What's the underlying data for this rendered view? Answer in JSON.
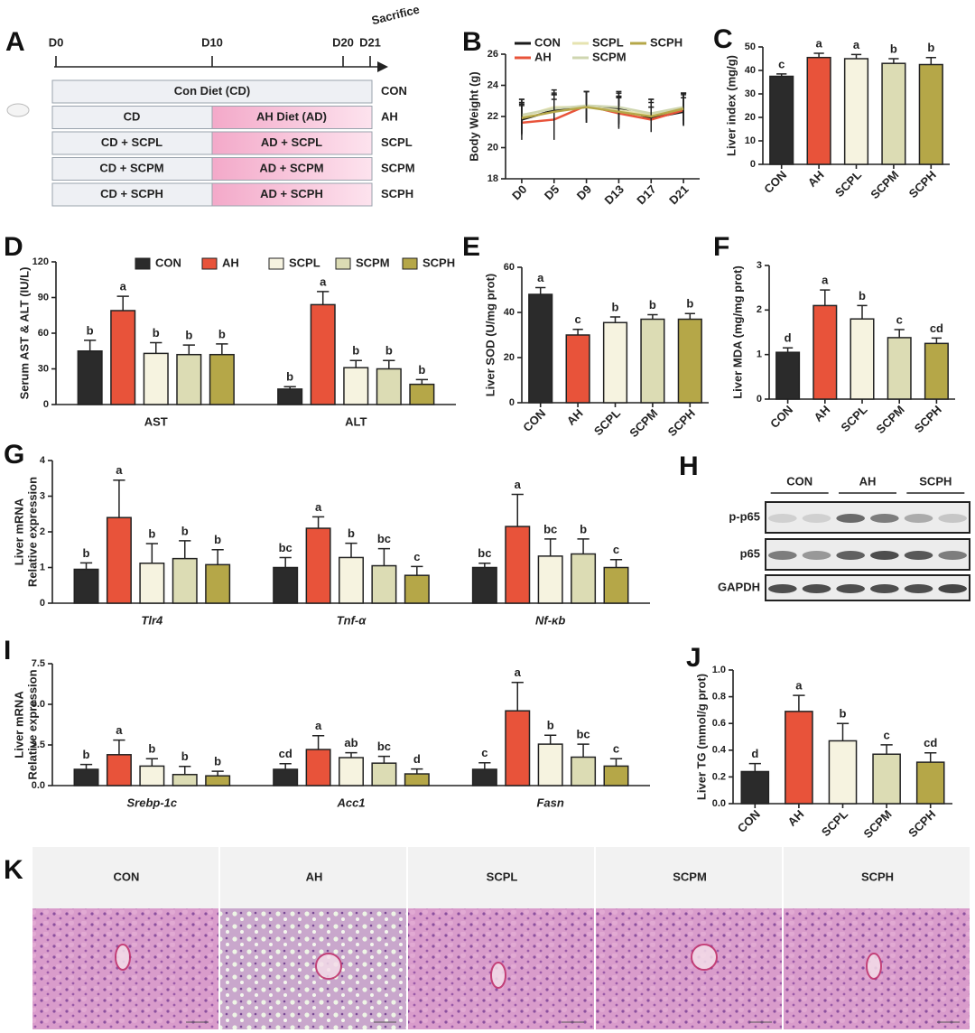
{
  "schematic": {
    "panel": "A",
    "timeline": [
      "D0",
      "D10",
      "D20",
      "D21"
    ],
    "event": "Sacrifice",
    "rows": [
      {
        "left": "Con Diet (CD)",
        "group": "CON"
      },
      {
        "left": "CD",
        "right": "AH Diet (AD)",
        "group": "AH"
      },
      {
        "left": "CD + SCPL",
        "right": "AD + SCPL",
        "group": "SCPL"
      },
      {
        "left": "CD + SCPM",
        "right": "AD + SCPM",
        "group": "SCPM"
      },
      {
        "left": "CD + SCPH",
        "right": "AD + SCPH",
        "group": "SCPH"
      }
    ]
  },
  "chart_data": [
    {
      "type": "line",
      "panel": "B",
      "ylabel": "Body Weight (g)",
      "categories": [
        "D0",
        "D5",
        "D9",
        "D13",
        "D17",
        "D21"
      ],
      "ylim": [
        18,
        26
      ],
      "yticks": [
        18,
        20,
        22,
        24,
        26
      ],
      "series": [
        {
          "name": "CON",
          "color": "#1a1a1a",
          "values": [
            21.8,
            22.4,
            22.6,
            22.5,
            21.9,
            22.3
          ],
          "errors": [
            1.0,
            1.0,
            1.0,
            1.0,
            0.7,
            0.9
          ]
        },
        {
          "name": "AH",
          "color": "#e8533a",
          "values": [
            21.6,
            21.8,
            22.7,
            22.2,
            21.8,
            22.4
          ],
          "errors": [
            1.1,
            1.3,
            0.9,
            1.0,
            0.8,
            1.0
          ]
        },
        {
          "name": "SCPL",
          "color": "#e6e3b0",
          "values": [
            22.0,
            22.6,
            22.6,
            22.4,
            22.1,
            22.5
          ],
          "errors": [
            1.1,
            1.1,
            1.0,
            0.9,
            1.0,
            1.0
          ]
        },
        {
          "name": "SCPM",
          "color": "#cfd6b0",
          "values": [
            22.1,
            22.5,
            22.7,
            22.6,
            22.2,
            22.6
          ],
          "errors": [
            1.0,
            1.0,
            0.9,
            1.0,
            0.9,
            0.9
          ]
        },
        {
          "name": "SCPH",
          "color": "#b5a748",
          "values": [
            21.9,
            22.3,
            22.6,
            22.3,
            22.0,
            22.5
          ],
          "errors": [
            1.0,
            1.1,
            1.0,
            1.0,
            0.9,
            1.0
          ]
        }
      ]
    },
    {
      "type": "bar",
      "panel": "C",
      "ylabel": "Liver index (mg/g)",
      "categories": [
        "CON",
        "AH",
        "SCPL",
        "SCPM",
        "SCPH"
      ],
      "colors": [
        "#2b2b2b",
        "#e8533a",
        "#f6f3e0",
        "#dcdcb4",
        "#b5a748"
      ],
      "values": [
        37.5,
        45.5,
        45,
        43,
        42.5
      ],
      "errors": [
        1,
        1.8,
        1.8,
        2,
        3
      ],
      "significance": [
        "c",
        "a",
        "a",
        "b",
        "b"
      ],
      "ylim": [
        0,
        50
      ],
      "yticks": [
        0,
        10,
        20,
        30,
        40,
        50
      ]
    },
    {
      "type": "grouped_bar",
      "panel": "D",
      "ylabel": "Serum AST & ALT (IU/L)",
      "legend": "top",
      "categories": [
        "AST",
        "ALT"
      ],
      "ylim": [
        0,
        120
      ],
      "yticks": [
        0,
        30,
        60,
        90,
        120
      ],
      "series": [
        {
          "name": "CON",
          "color": "#2b2b2b",
          "values": [
            45,
            13
          ],
          "errors": [
            9,
            2
          ],
          "significance": [
            "b",
            "b"
          ]
        },
        {
          "name": "AH",
          "color": "#e8533a",
          "values": [
            79,
            84
          ],
          "errors": [
            12,
            11
          ],
          "significance": [
            "a",
            "a"
          ]
        },
        {
          "name": "SCPL",
          "color": "#f6f3e0",
          "values": [
            43,
            31
          ],
          "errors": [
            9,
            6
          ],
          "significance": [
            "b",
            "b"
          ]
        },
        {
          "name": "SCPM",
          "color": "#dcdcb4",
          "values": [
            42,
            30
          ],
          "errors": [
            8,
            7
          ],
          "significance": [
            "b",
            "b"
          ]
        },
        {
          "name": "SCPH",
          "color": "#b5a748",
          "values": [
            42,
            17
          ],
          "errors": [
            9,
            4
          ],
          "significance": [
            "b",
            "b"
          ]
        }
      ]
    },
    {
      "type": "bar",
      "panel": "E",
      "ylabel": "Liver SOD (U/mg prot)",
      "categories": [
        "CON",
        "AH",
        "SCPL",
        "SCPM",
        "SCPH"
      ],
      "colors": [
        "#2b2b2b",
        "#e8533a",
        "#f6f3e0",
        "#dcdcb4",
        "#b5a748"
      ],
      "values": [
        48,
        30,
        35.5,
        37,
        37
      ],
      "errors": [
        3,
        2.5,
        2.5,
        2,
        2.5
      ],
      "significance": [
        "a",
        "c",
        "b",
        "b",
        "b"
      ],
      "ylim": [
        0,
        60
      ],
      "yticks": [
        0,
        20,
        40,
        60
      ]
    },
    {
      "type": "bar",
      "panel": "F",
      "ylabel": "Liver MDA (mg/mg prot)",
      "categories": [
        "CON",
        "AH",
        "SCPL",
        "SCPM",
        "SCPH"
      ],
      "colors": [
        "#2b2b2b",
        "#e8533a",
        "#f6f3e0",
        "#dcdcb4",
        "#b5a748"
      ],
      "values": [
        1.05,
        2.1,
        1.8,
        1.38,
        1.25
      ],
      "errors": [
        0.1,
        0.35,
        0.3,
        0.18,
        0.12
      ],
      "significance": [
        "d",
        "a",
        "b",
        "c",
        "cd"
      ],
      "ylim": [
        0,
        3
      ],
      "yticks": [
        0,
        1,
        2,
        3
      ]
    },
    {
      "type": "grouped_bar",
      "panel": "G",
      "ylabel": [
        "Liver mRNA",
        "Relative expression"
      ],
      "category_style": "italic",
      "categories": [
        "Tlr4",
        "Tnf-α",
        "Nf-κb"
      ],
      "ylim": [
        0,
        4
      ],
      "yticks": [
        0,
        1,
        2,
        3,
        4
      ],
      "series": [
        {
          "color": "#2b2b2b",
          "values": [
            0.95,
            1.0,
            1.0
          ],
          "errors": [
            0.18,
            0.28,
            0.12
          ],
          "significance": [
            "b",
            "bc",
            "bc"
          ]
        },
        {
          "color": "#e8533a",
          "values": [
            2.4,
            2.1,
            2.15
          ],
          "errors": [
            1.05,
            0.32,
            0.9
          ],
          "significance": [
            "a",
            "a",
            "a"
          ]
        },
        {
          "color": "#f6f3e0",
          "values": [
            1.12,
            1.28,
            1.32
          ],
          "errors": [
            0.55,
            0.4,
            0.48
          ],
          "significance": [
            "b",
            "b",
            "bc"
          ]
        },
        {
          "color": "#dcdcb4",
          "values": [
            1.25,
            1.05,
            1.38
          ],
          "errors": [
            0.5,
            0.48,
            0.42
          ],
          "significance": [
            "b",
            "bc",
            "b"
          ]
        },
        {
          "color": "#b5a748",
          "values": [
            1.08,
            0.78,
            1.0
          ],
          "errors": [
            0.42,
            0.25,
            0.22
          ],
          "significance": [
            "b",
            "c",
            "c"
          ]
        }
      ]
    },
    {
      "type": "grouped_bar",
      "panel": "I",
      "ylabel": [
        "Liver mRNA",
        "Relative expression"
      ],
      "category_style": "italic",
      "categories": [
        "Srebp-1c",
        "Acc1",
        "Fasn"
      ],
      "ylim": [
        0,
        7.5
      ],
      "yticks": [
        {
          "value": 0,
          "label": "0.0"
        },
        {
          "value": 2.5,
          "label": "2.5"
        },
        {
          "value": 5,
          "label": "5.0"
        },
        {
          "value": 7.5,
          "label": "7.5"
        }
      ],
      "series": [
        {
          "color": "#2b2b2b",
          "values": [
            1.0,
            1.0,
            1.0
          ],
          "errors": [
            0.3,
            0.35,
            0.4
          ],
          "significance": [
            "b",
            "cd",
            "c"
          ]
        },
        {
          "color": "#e8533a",
          "values": [
            1.9,
            2.22,
            4.6
          ],
          "errors": [
            0.9,
            0.85,
            1.75
          ],
          "significance": [
            "a",
            "a",
            "a"
          ]
        },
        {
          "color": "#f6f3e0",
          "values": [
            1.2,
            1.72,
            2.55
          ],
          "errors": [
            0.45,
            0.3,
            0.55
          ],
          "significance": [
            "b",
            "ab",
            "b"
          ]
        },
        {
          "color": "#dcdcb4",
          "values": [
            0.68,
            1.38,
            1.75
          ],
          "errors": [
            0.5,
            0.42,
            0.8
          ],
          "significance": [
            "b",
            "bc",
            "bc"
          ]
        },
        {
          "color": "#b5a748",
          "values": [
            0.6,
            0.72,
            1.2
          ],
          "errors": [
            0.28,
            0.3,
            0.45
          ],
          "significance": [
            "b",
            "d",
            "c"
          ]
        }
      ]
    },
    {
      "type": "bar",
      "panel": "J",
      "ylabel": "Liver TG (mmol/g prot)",
      "categories": [
        "CON",
        "AH",
        "SCPL",
        "SCPM",
        "SCPH"
      ],
      "colors": [
        "#2b2b2b",
        "#e8533a",
        "#f6f3e0",
        "#dcdcb4",
        "#b5a748"
      ],
      "values": [
        0.24,
        0.69,
        0.47,
        0.37,
        0.31
      ],
      "errors": [
        0.06,
        0.12,
        0.13,
        0.07,
        0.07
      ],
      "significance": [
        "d",
        "a",
        "b",
        "c",
        "cd"
      ],
      "ylim": [
        0,
        1
      ],
      "yticks": [
        {
          "value": 0,
          "label": "0.0"
        },
        {
          "value": 0.2,
          "label": "0.2"
        },
        {
          "value": 0.4,
          "label": "0.4"
        },
        {
          "value": 0.6,
          "label": "0.6"
        },
        {
          "value": 0.8,
          "label": "0.8"
        },
        {
          "value": 1,
          "label": "1.0"
        }
      ]
    }
  ],
  "blot": {
    "panel": "H",
    "groups": [
      "CON",
      "AH",
      "SCPH"
    ],
    "rows": [
      "p-p65",
      "p65",
      "GAPDH"
    ]
  },
  "histology": {
    "panel": "K",
    "groups": [
      "CON",
      "AH",
      "SCPL",
      "SCPM",
      "SCPH"
    ]
  }
}
